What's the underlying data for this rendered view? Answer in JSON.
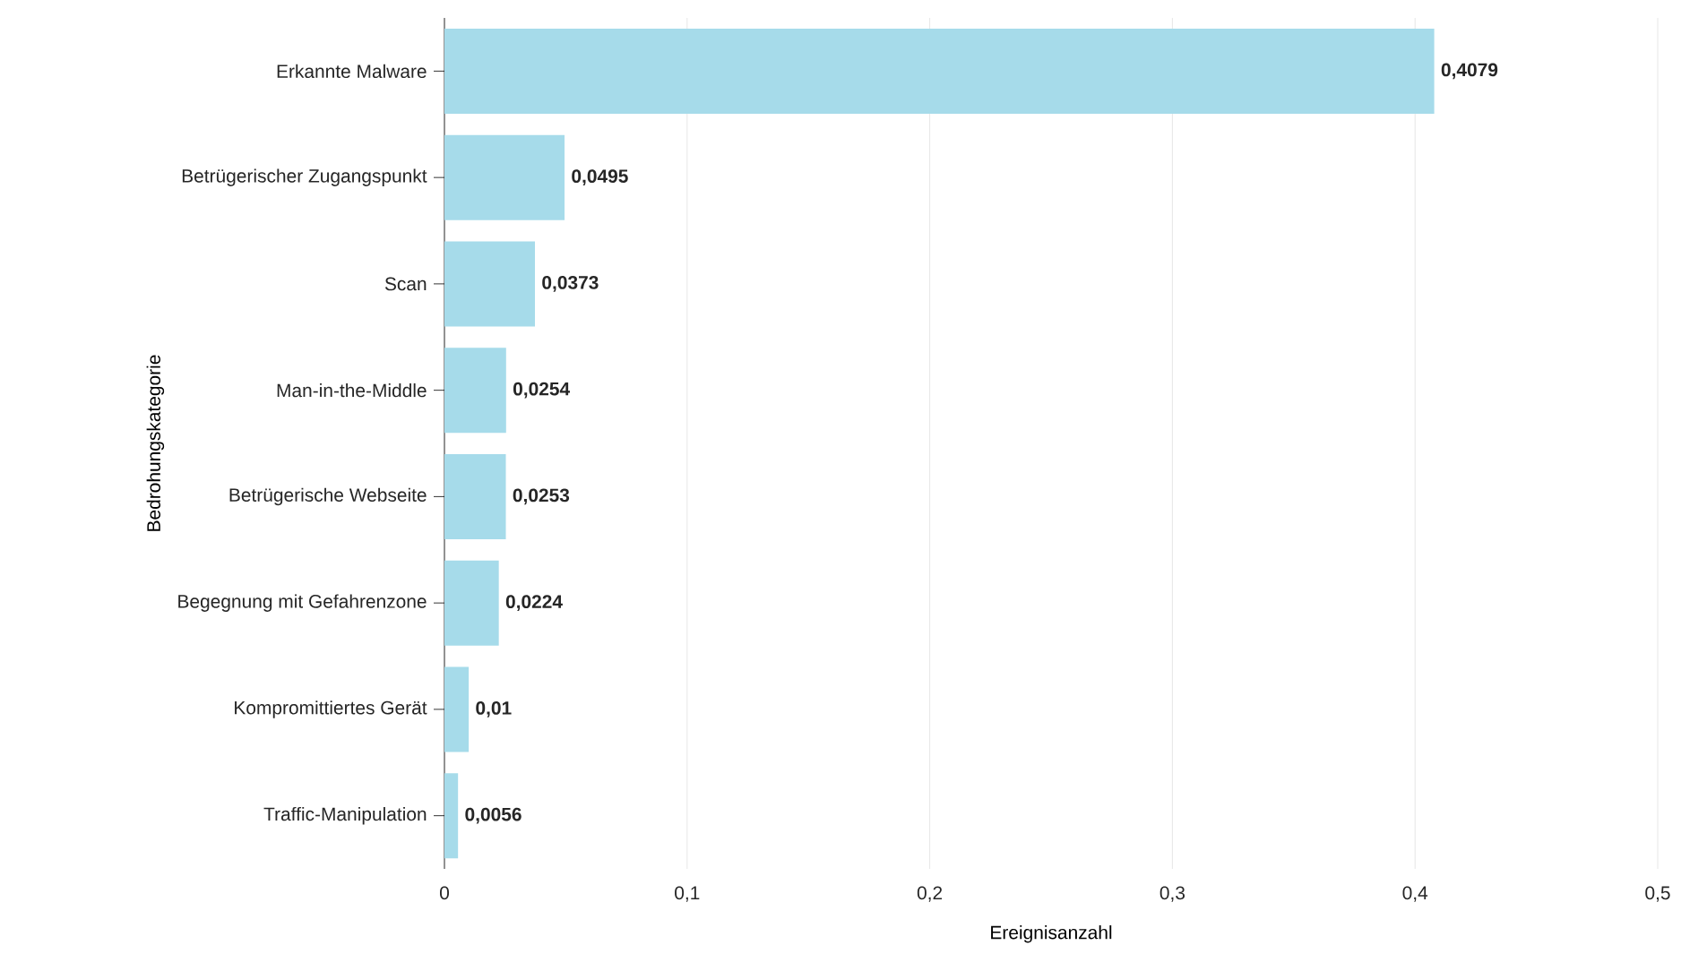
{
  "chart_data": {
    "type": "bar",
    "orientation": "horizontal",
    "xlabel": "Ereignisanzahl",
    "ylabel": "Bedrohungskategorie",
    "categories": [
      "Erkannte Malware",
      "Betrügerischer Zugangspunkt",
      "Scan",
      "Man-in-the-Middle",
      "Betrügerische Webseite",
      "Begegnung mit Gefahrenzone",
      "Kompromittiertes Gerät",
      "Traffic-Manipulation"
    ],
    "values": [
      0.4079,
      0.0495,
      0.0373,
      0.0254,
      0.0253,
      0.0224,
      0.01,
      0.0056
    ],
    "value_labels": [
      "0,4079",
      "0,0495",
      "0,0373",
      "0,0254",
      "0,0253",
      "0,0224",
      "0,01",
      "0,0056"
    ],
    "color": "#a6dbea",
    "xlim": [
      0,
      0.5
    ],
    "xticks": [
      0,
      {
        "value": 0.1,
        "label": "0,1"
      },
      {
        "value": 0.2,
        "label": "0,2"
      },
      {
        "value": 0.3,
        "label": "0,3"
      },
      {
        "value": 0.4,
        "label": "0,4"
      },
      {
        "value": 0.5,
        "label": "0,5"
      }
    ],
    "grid": "x"
  }
}
